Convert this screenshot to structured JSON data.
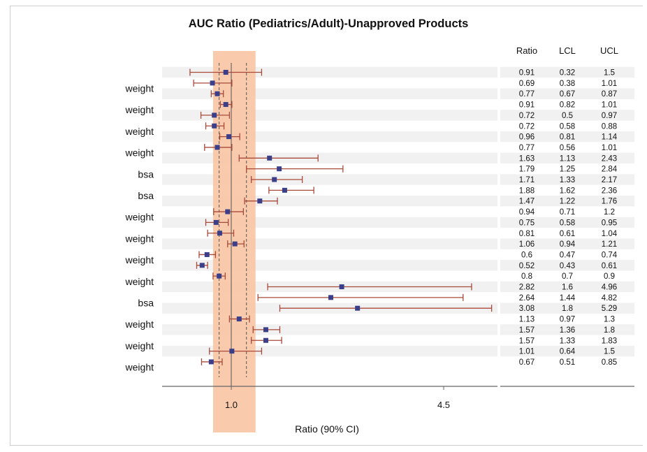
{
  "chart_data": {
    "type": "forest",
    "title": "AUC Ratio (Pediatrics/Adult)-Unapproved Products",
    "xlabel": "Ratio (90% CI)",
    "xticks": [
      1.0,
      4.5
    ],
    "xtick_labels": [
      "1.0",
      "4.5"
    ],
    "xlim": [
      0,
      5
    ],
    "reference_line": 1.0,
    "dashed_lines": [
      0.8,
      1.25
    ],
    "shaded_band": [
      0.7,
      1.4
    ],
    "table_headers": [
      "Ratio",
      "LCL",
      "UCL"
    ],
    "group_labels": [
      {
        "label": "weight",
        "row": 1.5
      },
      {
        "label": "weight",
        "row": 3.5
      },
      {
        "label": "weight",
        "row": 5.5
      },
      {
        "label": "weight",
        "row": 7.5
      },
      {
        "label": "bsa",
        "row": 9.5
      },
      {
        "label": "bsa",
        "row": 11.5
      },
      {
        "label": "weight",
        "row": 13.5
      },
      {
        "label": "weight",
        "row": 15.5
      },
      {
        "label": "weight",
        "row": 17.5
      },
      {
        "label": "weight",
        "row": 19.5
      },
      {
        "label": "bsa",
        "row": 21.5
      },
      {
        "label": "weight",
        "row": 23.5
      },
      {
        "label": "weight",
        "row": 25.5
      },
      {
        "label": "weight",
        "row": 27.5
      }
    ],
    "rows": [
      {
        "ratio": "0.91",
        "lcl": "0.32",
        "ucl": "1.5"
      },
      {
        "ratio": "0.69",
        "lcl": "0.38",
        "ucl": "1.01"
      },
      {
        "ratio": "0.77",
        "lcl": "0.67",
        "ucl": "0.87"
      },
      {
        "ratio": "0.91",
        "lcl": "0.82",
        "ucl": "1.01"
      },
      {
        "ratio": "0.72",
        "lcl": "0.5",
        "ucl": "0.97"
      },
      {
        "ratio": "0.72",
        "lcl": "0.58",
        "ucl": "0.88"
      },
      {
        "ratio": "0.96",
        "lcl": "0.81",
        "ucl": "1.14"
      },
      {
        "ratio": "0.77",
        "lcl": "0.56",
        "ucl": "1.01"
      },
      {
        "ratio": "1.63",
        "lcl": "1.13",
        "ucl": "2.43"
      },
      {
        "ratio": "1.79",
        "lcl": "1.25",
        "ucl": "2.84"
      },
      {
        "ratio": "1.71",
        "lcl": "1.33",
        "ucl": "2.17"
      },
      {
        "ratio": "1.88",
        "lcl": "1.62",
        "ucl": "2.36"
      },
      {
        "ratio": "1.47",
        "lcl": "1.22",
        "ucl": "1.76"
      },
      {
        "ratio": "0.94",
        "lcl": "0.71",
        "ucl": "1.2"
      },
      {
        "ratio": "0.75",
        "lcl": "0.58",
        "ucl": "0.95"
      },
      {
        "ratio": "0.81",
        "lcl": "0.61",
        "ucl": "1.04"
      },
      {
        "ratio": "1.06",
        "lcl": "0.94",
        "ucl": "1.21"
      },
      {
        "ratio": "0.6",
        "lcl": "0.47",
        "ucl": "0.74"
      },
      {
        "ratio": "0.52",
        "lcl": "0.43",
        "ucl": "0.61"
      },
      {
        "ratio": "0.8",
        "lcl": "0.7",
        "ucl": "0.9"
      },
      {
        "ratio": "2.82",
        "lcl": "1.6",
        "ucl": "4.96"
      },
      {
        "ratio": "2.64",
        "lcl": "1.44",
        "ucl": "4.82"
      },
      {
        "ratio": "3.08",
        "lcl": "1.8",
        "ucl": "5.29"
      },
      {
        "ratio": "1.13",
        "lcl": "0.97",
        "ucl": "1.3"
      },
      {
        "ratio": "1.57",
        "lcl": "1.36",
        "ucl": "1.8"
      },
      {
        "ratio": "1.57",
        "lcl": "1.33",
        "ucl": "1.83"
      },
      {
        "ratio": "1.01",
        "lcl": "0.64",
        "ucl": "1.5"
      },
      {
        "ratio": "0.67",
        "lcl": "0.51",
        "ucl": "0.85"
      }
    ],
    "colors": {
      "marker": "#3b3f8a",
      "ci_line": "#a84a3a",
      "band": "#f8c4a3",
      "row_stripe": "#f1f1f1",
      "ref_line": "#555555",
      "axis": "#666666"
    }
  }
}
